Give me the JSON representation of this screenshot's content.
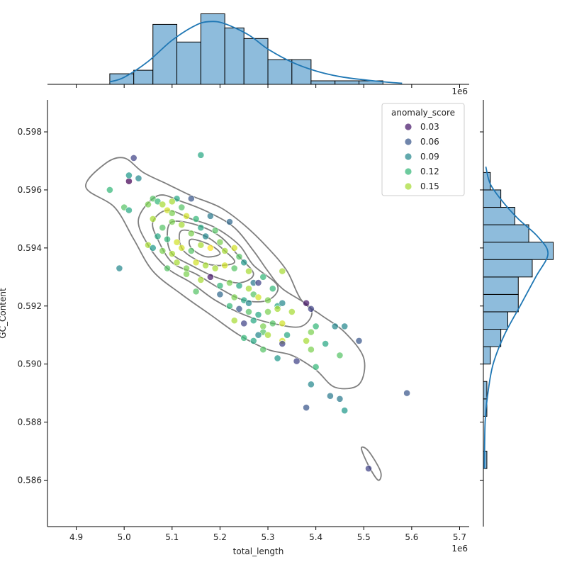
{
  "chart_data": {
    "type": "scatter",
    "xlabel": "total_length",
    "ylabel": "GC_Content",
    "x_offset_label": "1e6",
    "x_range": [
      4.84,
      5.72
    ],
    "y_range": [
      0.5844,
      0.5991
    ],
    "x_ticks": [
      "4.9",
      "5.0",
      "5.1",
      "5.2",
      "5.3",
      "5.4",
      "5.5",
      "5.6",
      "5.7"
    ],
    "y_ticks": [
      "0.586",
      "0.588",
      "0.590",
      "0.592",
      "0.594",
      "0.596",
      "0.598"
    ],
    "legend": {
      "title": "anomaly_score",
      "position": "top-right",
      "entries": [
        {
          "label": "0.03",
          "value": 0.03
        },
        {
          "label": "0.06",
          "value": 0.06
        },
        {
          "label": "0.09",
          "value": 0.09
        },
        {
          "label": "0.12",
          "value": 0.12
        },
        {
          "label": "0.15",
          "value": 0.15
        }
      ]
    },
    "colormap": "viridis",
    "color_range": [
      0.02,
      0.17
    ],
    "points": [
      [
        5.01,
        0.5963,
        0.02
      ],
      [
        5.02,
        0.5971,
        0.05
      ],
      [
        4.97,
        0.596,
        0.12
      ],
      [
        5.01,
        0.5965,
        0.1
      ],
      [
        5.03,
        0.5964,
        0.09
      ],
      [
        5.0,
        0.5954,
        0.13
      ],
      [
        5.01,
        0.5953,
        0.11
      ],
      [
        5.05,
        0.5955,
        0.14
      ],
      [
        5.06,
        0.5957,
        0.13
      ],
      [
        5.07,
        0.5956,
        0.12
      ],
      [
        5.08,
        0.5955,
        0.15
      ],
      [
        5.09,
        0.5953,
        0.16
      ],
      [
        5.1,
        0.5952,
        0.14
      ],
      [
        5.11,
        0.5957,
        0.11
      ],
      [
        5.14,
        0.5957,
        0.06
      ],
      [
        5.1,
        0.5956,
        0.15
      ],
      [
        5.12,
        0.5954,
        0.13
      ],
      [
        5.06,
        0.595,
        0.15
      ],
      [
        5.08,
        0.5947,
        0.13
      ],
      [
        5.1,
        0.5949,
        0.14
      ],
      [
        5.12,
        0.5948,
        0.15
      ],
      [
        5.13,
        0.5951,
        0.16
      ],
      [
        5.15,
        0.595,
        0.12
      ],
      [
        5.18,
        0.5951,
        0.08
      ],
      [
        5.22,
        0.5949,
        0.07
      ],
      [
        5.07,
        0.5944,
        0.11
      ],
      [
        5.09,
        0.5943,
        0.12
      ],
      [
        5.11,
        0.5942,
        0.16
      ],
      [
        5.14,
        0.5945,
        0.14
      ],
      [
        5.16,
        0.5947,
        0.11
      ],
      [
        5.17,
        0.5944,
        0.09
      ],
      [
        5.19,
        0.5946,
        0.13
      ],
      [
        5.05,
        0.5941,
        0.15
      ],
      [
        5.06,
        0.594,
        0.1
      ],
      [
        5.08,
        0.5939,
        0.14
      ],
      [
        5.1,
        0.5938,
        0.15
      ],
      [
        5.12,
        0.594,
        0.16
      ],
      [
        5.14,
        0.5939,
        0.13
      ],
      [
        5.16,
        0.5941,
        0.15
      ],
      [
        5.18,
        0.594,
        0.17
      ],
      [
        5.2,
        0.5942,
        0.14
      ],
      [
        5.21,
        0.5939,
        0.15
      ],
      [
        5.23,
        0.594,
        0.16
      ],
      [
        5.24,
        0.5937,
        0.13
      ],
      [
        4.99,
        0.5933,
        0.09
      ],
      [
        5.09,
        0.5933,
        0.13
      ],
      [
        5.11,
        0.5935,
        0.15
      ],
      [
        5.13,
        0.5933,
        0.14
      ],
      [
        5.15,
        0.5935,
        0.16
      ],
      [
        5.17,
        0.5934,
        0.15
      ],
      [
        5.18,
        0.593,
        0.03
      ],
      [
        5.19,
        0.5933,
        0.15
      ],
      [
        5.21,
        0.5934,
        0.16
      ],
      [
        5.23,
        0.5933,
        0.13
      ],
      [
        5.25,
        0.5935,
        0.1
      ],
      [
        5.26,
        0.5932,
        0.15
      ],
      [
        5.13,
        0.5931,
        0.14
      ],
      [
        5.16,
        0.5929,
        0.15
      ],
      [
        5.2,
        0.5927,
        0.12
      ],
      [
        5.22,
        0.5928,
        0.14
      ],
      [
        5.24,
        0.5927,
        0.11
      ],
      [
        5.26,
        0.5926,
        0.15
      ],
      [
        5.27,
        0.5928,
        0.08
      ],
      [
        5.28,
        0.5928,
        0.05
      ],
      [
        5.29,
        0.593,
        0.12
      ],
      [
        5.31,
        0.5926,
        0.12
      ],
      [
        5.33,
        0.5932,
        0.15
      ],
      [
        5.15,
        0.5925,
        0.13
      ],
      [
        5.2,
        0.5924,
        0.07
      ],
      [
        5.23,
        0.5923,
        0.14
      ],
      [
        5.25,
        0.5922,
        0.11
      ],
      [
        5.26,
        0.5921,
        0.09
      ],
      [
        5.27,
        0.5924,
        0.13
      ],
      [
        5.28,
        0.5923,
        0.16
      ],
      [
        5.3,
        0.5922,
        0.14
      ],
      [
        5.32,
        0.592,
        0.11
      ],
      [
        5.33,
        0.5921,
        0.09
      ],
      [
        5.22,
        0.592,
        0.12
      ],
      [
        5.24,
        0.5919,
        0.06
      ],
      [
        5.26,
        0.5918,
        0.13
      ],
      [
        5.28,
        0.5917,
        0.11
      ],
      [
        5.3,
        0.5918,
        0.14
      ],
      [
        5.32,
        0.5919,
        0.15
      ],
      [
        5.35,
        0.5918,
        0.15
      ],
      [
        5.38,
        0.5921,
        0.03
      ],
      [
        5.39,
        0.5919,
        0.05
      ],
      [
        5.23,
        0.5915,
        0.15
      ],
      [
        5.25,
        0.5914,
        0.05
      ],
      [
        5.27,
        0.5915,
        0.11
      ],
      [
        5.29,
        0.5913,
        0.14
      ],
      [
        5.31,
        0.5914,
        0.13
      ],
      [
        5.33,
        0.5914,
        0.16
      ],
      [
        5.34,
        0.591,
        0.11
      ],
      [
        5.29,
        0.5911,
        0.13
      ],
      [
        5.3,
        0.591,
        0.15
      ],
      [
        5.33,
        0.5908,
        0.16
      ],
      [
        5.25,
        0.5909,
        0.12
      ],
      [
        5.28,
        0.591,
        0.09
      ],
      [
        5.27,
        0.5908,
        0.11
      ],
      [
        5.29,
        0.5905,
        0.13
      ],
      [
        5.33,
        0.5907,
        0.05
      ],
      [
        5.32,
        0.5902,
        0.1
      ],
      [
        5.36,
        0.5901,
        0.05
      ],
      [
        5.39,
        0.5911,
        0.14
      ],
      [
        5.4,
        0.5913,
        0.12
      ],
      [
        5.38,
        0.5908,
        0.15
      ],
      [
        5.39,
        0.5905,
        0.14
      ],
      [
        5.4,
        0.5899,
        0.12
      ],
      [
        5.42,
        0.5907,
        0.11
      ],
      [
        5.44,
        0.5913,
        0.09
      ],
      [
        5.46,
        0.5913,
        0.09
      ],
      [
        5.45,
        0.5903,
        0.13
      ],
      [
        5.49,
        0.5908,
        0.06
      ],
      [
        5.39,
        0.5893,
        0.09
      ],
      [
        5.43,
        0.5889,
        0.08
      ],
      [
        5.45,
        0.5888,
        0.08
      ],
      [
        5.46,
        0.5884,
        0.1
      ],
      [
        5.38,
        0.5885,
        0.06
      ],
      [
        5.59,
        0.589,
        0.06
      ],
      [
        5.51,
        0.5864,
        0.05
      ],
      [
        5.16,
        0.5972,
        0.11
      ]
    ],
    "kde_contours": [
      [
        [
          4.96,
          0.5969
        ],
        [
          5.0,
          0.5971
        ],
        [
          5.04,
          0.5966
        ],
        [
          5.09,
          0.5962
        ],
        [
          5.14,
          0.5958
        ],
        [
          5.2,
          0.5954
        ],
        [
          5.25,
          0.5948
        ],
        [
          5.3,
          0.594
        ],
        [
          5.34,
          0.5932
        ],
        [
          5.37,
          0.5922
        ],
        [
          5.41,
          0.5917
        ],
        [
          5.46,
          0.5911
        ],
        [
          5.5,
          0.5902
        ],
        [
          5.49,
          0.5893
        ],
        [
          5.44,
          0.5892
        ],
        [
          5.4,
          0.5898
        ],
        [
          5.35,
          0.5903
        ],
        [
          5.3,
          0.5905
        ],
        [
          5.24,
          0.591
        ],
        [
          5.18,
          0.5917
        ],
        [
          5.12,
          0.5924
        ],
        [
          5.06,
          0.5932
        ],
        [
          5.02,
          0.5943
        ],
        [
          4.98,
          0.5954
        ],
        [
          4.92,
          0.5961
        ],
        [
          4.96,
          0.5969
        ]
      ],
      [
        [
          5.07,
          0.5958
        ],
        [
          5.12,
          0.5956
        ],
        [
          5.18,
          0.5952
        ],
        [
          5.23,
          0.5947
        ],
        [
          5.27,
          0.5939
        ],
        [
          5.3,
          0.5932
        ],
        [
          5.33,
          0.5926
        ],
        [
          5.39,
          0.5919
        ],
        [
          5.37,
          0.5913
        ],
        [
          5.31,
          0.5914
        ],
        [
          5.25,
          0.5917
        ],
        [
          5.19,
          0.5922
        ],
        [
          5.14,
          0.5928
        ],
        [
          5.09,
          0.5933
        ],
        [
          5.05,
          0.5941
        ],
        [
          5.03,
          0.595
        ],
        [
          5.07,
          0.5958
        ]
      ],
      [
        [
          5.09,
          0.5953
        ],
        [
          5.14,
          0.595
        ],
        [
          5.19,
          0.5947
        ],
        [
          5.24,
          0.5941
        ],
        [
          5.27,
          0.5934
        ],
        [
          5.32,
          0.5927
        ],
        [
          5.3,
          0.5922
        ],
        [
          5.25,
          0.5922
        ],
        [
          5.2,
          0.5926
        ],
        [
          5.15,
          0.5931
        ],
        [
          5.1,
          0.5935
        ],
        [
          5.07,
          0.5943
        ],
        [
          5.06,
          0.5949
        ],
        [
          5.09,
          0.5953
        ]
      ],
      [
        [
          5.1,
          0.5949
        ],
        [
          5.15,
          0.5948
        ],
        [
          5.2,
          0.5944
        ],
        [
          5.24,
          0.5937
        ],
        [
          5.27,
          0.5931
        ],
        [
          5.24,
          0.5928
        ],
        [
          5.19,
          0.593
        ],
        [
          5.14,
          0.5934
        ],
        [
          5.1,
          0.5938
        ],
        [
          5.09,
          0.5944
        ],
        [
          5.1,
          0.5949
        ]
      ],
      [
        [
          5.12,
          0.5946
        ],
        [
          5.17,
          0.5944
        ],
        [
          5.21,
          0.5939
        ],
        [
          5.23,
          0.5935
        ],
        [
          5.19,
          0.5934
        ],
        [
          5.15,
          0.5936
        ],
        [
          5.12,
          0.594
        ],
        [
          5.12,
          0.5946
        ]
      ],
      [
        [
          5.14,
          0.5943
        ],
        [
          5.18,
          0.5941
        ],
        [
          5.2,
          0.5938
        ],
        [
          5.17,
          0.5937
        ],
        [
          5.14,
          0.594
        ],
        [
          5.14,
          0.5943
        ]
      ],
      [
        [
          5.495,
          0.5871
        ],
        [
          5.51,
          0.5865
        ],
        [
          5.53,
          0.586
        ],
        [
          5.535,
          0.5863
        ],
        [
          5.51,
          0.587
        ],
        [
          5.495,
          0.5871
        ]
      ]
    ],
    "x_histogram": {
      "bin_edges": [
        4.97,
        5.02,
        5.06,
        5.11,
        5.16,
        5.21,
        5.25,
        5.3,
        5.35,
        5.39,
        5.44,
        5.49,
        5.54,
        5.58
      ],
      "counts": [
        3,
        4,
        17,
        12,
        20,
        16,
        13,
        7,
        7,
        1,
        1,
        1,
        0
      ]
    },
    "x_kde": [
      [
        4.97,
        0.7
      ],
      [
        5.0,
        2.0
      ],
      [
        5.05,
        6.5
      ],
      [
        5.1,
        12.5
      ],
      [
        5.15,
        16.8
      ],
      [
        5.18,
        17.8
      ],
      [
        5.21,
        17.2
      ],
      [
        5.26,
        14.0
      ],
      [
        5.3,
        10.0
      ],
      [
        5.35,
        6.3
      ],
      [
        5.4,
        3.8
      ],
      [
        5.45,
        2.2
      ],
      [
        5.5,
        1.3
      ],
      [
        5.55,
        0.6
      ],
      [
        5.58,
        0.3
      ]
    ],
    "y_histogram": {
      "bin_edges": [
        0.5864,
        0.587,
        0.5876,
        0.5882,
        0.5888,
        0.5894,
        0.59,
        0.5906,
        0.5912,
        0.5918,
        0.5924,
        0.593,
        0.5936,
        0.5942,
        0.5948,
        0.5954,
        0.596,
        0.5966
      ],
      "counts": [
        1,
        0,
        0,
        1,
        1,
        0,
        2,
        5,
        7,
        10,
        10,
        14,
        20,
        13,
        9,
        5,
        2
      ]
    },
    "y_kde": [
      [
        0.5864,
        0.3
      ],
      [
        0.588,
        0.5
      ],
      [
        0.589,
        1.3
      ],
      [
        0.59,
        2.8
      ],
      [
        0.591,
        6.0
      ],
      [
        0.592,
        10.5
      ],
      [
        0.593,
        15.0
      ],
      [
        0.5938,
        18.5
      ],
      [
        0.5944,
        15.5
      ],
      [
        0.595,
        10.0
      ],
      [
        0.5956,
        5.5
      ],
      [
        0.5962,
        2.0
      ],
      [
        0.5968,
        0.7
      ]
    ]
  },
  "colors": {
    "hist_fill": "#8ebcdc",
    "kde_line": "#1f77b4",
    "contour": "#7f7f7f"
  }
}
